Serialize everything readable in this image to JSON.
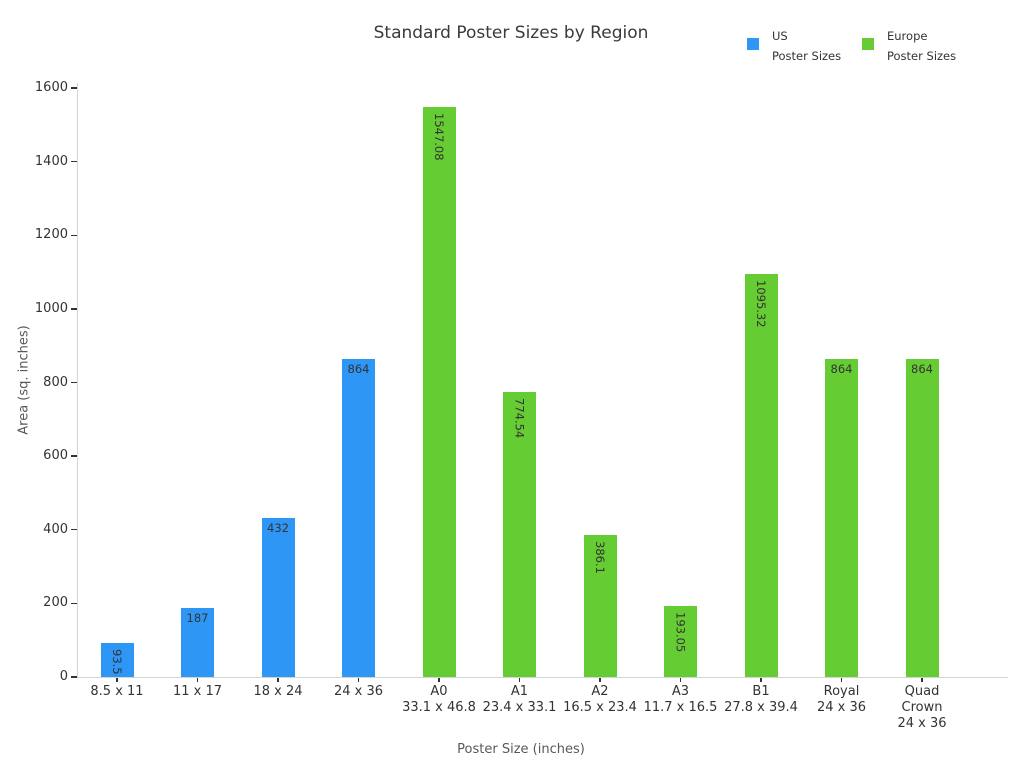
{
  "colors": {
    "us_blue": "#2e96f5",
    "europe_green": "#66cc33",
    "title_text": "#3a3a3a",
    "tick_text": "#333333",
    "axis_title_text": "#595959",
    "spine": "#d4d4d4",
    "background": "#ffffff"
  },
  "legend": {
    "items": [
      {
        "key": "us",
        "color": "#2e96f5",
        "line1": "US",
        "line2": "Poster Sizes"
      },
      {
        "key": "europe",
        "color": "#66cc33",
        "line1": "Europe",
        "line2": "Poster Sizes"
      }
    ]
  },
  "chart_data": {
    "type": "bar",
    "title": "Standard Poster Sizes by Region",
    "xlabel": "Poster Size (inches)",
    "ylabel": "Area (sq. inches)",
    "ylim": [
      0,
      1600
    ],
    "yticks": [
      0,
      200,
      400,
      600,
      800,
      1000,
      1200,
      1400,
      1600
    ],
    "grid": false,
    "legend_position": "top-right",
    "categories": [
      [
        "8.5 x 11"
      ],
      [
        "11 x 17"
      ],
      [
        "18 x 24"
      ],
      [
        "24 x 36"
      ],
      [
        "A0",
        "33.1 x 46.8"
      ],
      [
        "A1",
        "23.4 x 33.1"
      ],
      [
        "A2",
        "16.5 x 23.4"
      ],
      [
        "A3",
        "11.7 x 16.5"
      ],
      [
        "B1",
        "27.8 x 39.4"
      ],
      [
        "Royal",
        "24 x 36"
      ],
      [
        "Quad",
        "Crown",
        "24 x 36"
      ]
    ],
    "series": [
      {
        "name": "US Poster Sizes",
        "color": "#2e96f5",
        "values": [
          93.5,
          187,
          432,
          864,
          null,
          null,
          null,
          null,
          null,
          null,
          null
        ]
      },
      {
        "name": "Europe Poster Sizes",
        "color": "#66cc33",
        "values": [
          null,
          null,
          null,
          null,
          1547.08,
          774.54,
          386.1,
          193.05,
          1095.32,
          864,
          864
        ]
      }
    ],
    "bar_labels": [
      {
        "text": "93.5",
        "rotated": true
      },
      {
        "text": "187",
        "rotated": false
      },
      {
        "text": "432",
        "rotated": false
      },
      {
        "text": "864",
        "rotated": false
      },
      {
        "text": "1547.08",
        "rotated": true
      },
      {
        "text": "774.54",
        "rotated": true
      },
      {
        "text": "386.1",
        "rotated": true
      },
      {
        "text": "193.05",
        "rotated": true
      },
      {
        "text": "1095.32",
        "rotated": true
      },
      {
        "text": "864",
        "rotated": false
      },
      {
        "text": "864",
        "rotated": false
      }
    ]
  }
}
